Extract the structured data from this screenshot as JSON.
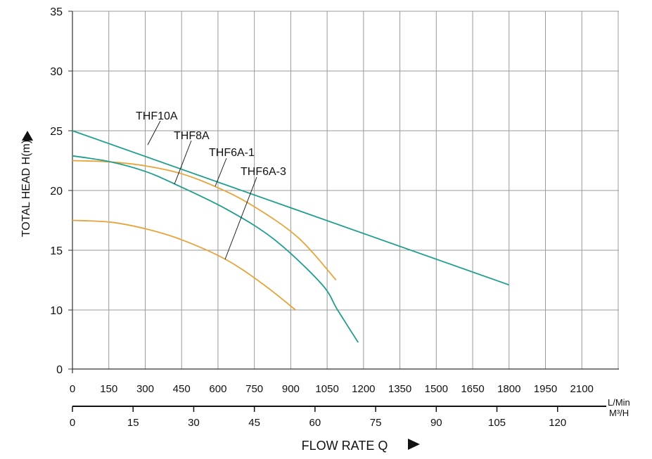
{
  "chart_data": {
    "type": "line",
    "title": "",
    "xlabel": "FLOW RATE Q",
    "ylabel": "TOTAL HEAD H(m)",
    "x_unit_primary": "L/Min",
    "x_unit_secondary": "M³/H",
    "xlim": [
      0,
      2250
    ],
    "x_ticks": [
      0,
      150,
      300,
      450,
      600,
      750,
      900,
      1050,
      1200,
      1350,
      1500,
      1650,
      1800,
      1950,
      2100
    ],
    "x2_ticks": [
      0,
      15,
      30,
      45,
      60,
      75,
      90,
      105,
      120
    ],
    "y_ticks": [
      0,
      10,
      15,
      20,
      25,
      30,
      35
    ],
    "y_axis_note": "broken axis: 0 to 10 occupies one grid interval",
    "grid": true,
    "colors": {
      "teal": "#1f9e8e",
      "orange": "#e8a33a",
      "grid": "#9a9a9a"
    },
    "series": [
      {
        "name": "THF10A",
        "color": "#1f9e8e",
        "x": [
          0,
          1800
        ],
        "y": [
          25,
          12.1
        ]
      },
      {
        "name": "THF8A",
        "color": "#e8a33a",
        "x": [
          0,
          150,
          301,
          450,
          592,
          737,
          928,
          1087
        ],
        "y": [
          22.5,
          22.4,
          22.06,
          21.4,
          20.3,
          18.8,
          16.1,
          12.5
        ]
      },
      {
        "name": "THF6A-1",
        "color": "#1f9e8e",
        "x": [
          0,
          157,
          300,
          426,
          638,
          832,
          1026,
          1093,
          1178
        ],
        "y": [
          22.9,
          22.4,
          21.6,
          20.5,
          18.4,
          15.9,
          12.2,
          10,
          4.5
        ]
      },
      {
        "name": "THF6A-3",
        "color": "#e8a33a",
        "x": [
          0,
          157,
          300,
          447,
          630,
          783,
          920
        ],
        "y": [
          17.5,
          17.35,
          16.8,
          15.9,
          14.25,
          12.2,
          10
        ]
      }
    ],
    "labels": [
      "THF10A",
      "THF8A",
      "THF6A-1",
      "THF6A-3"
    ]
  }
}
